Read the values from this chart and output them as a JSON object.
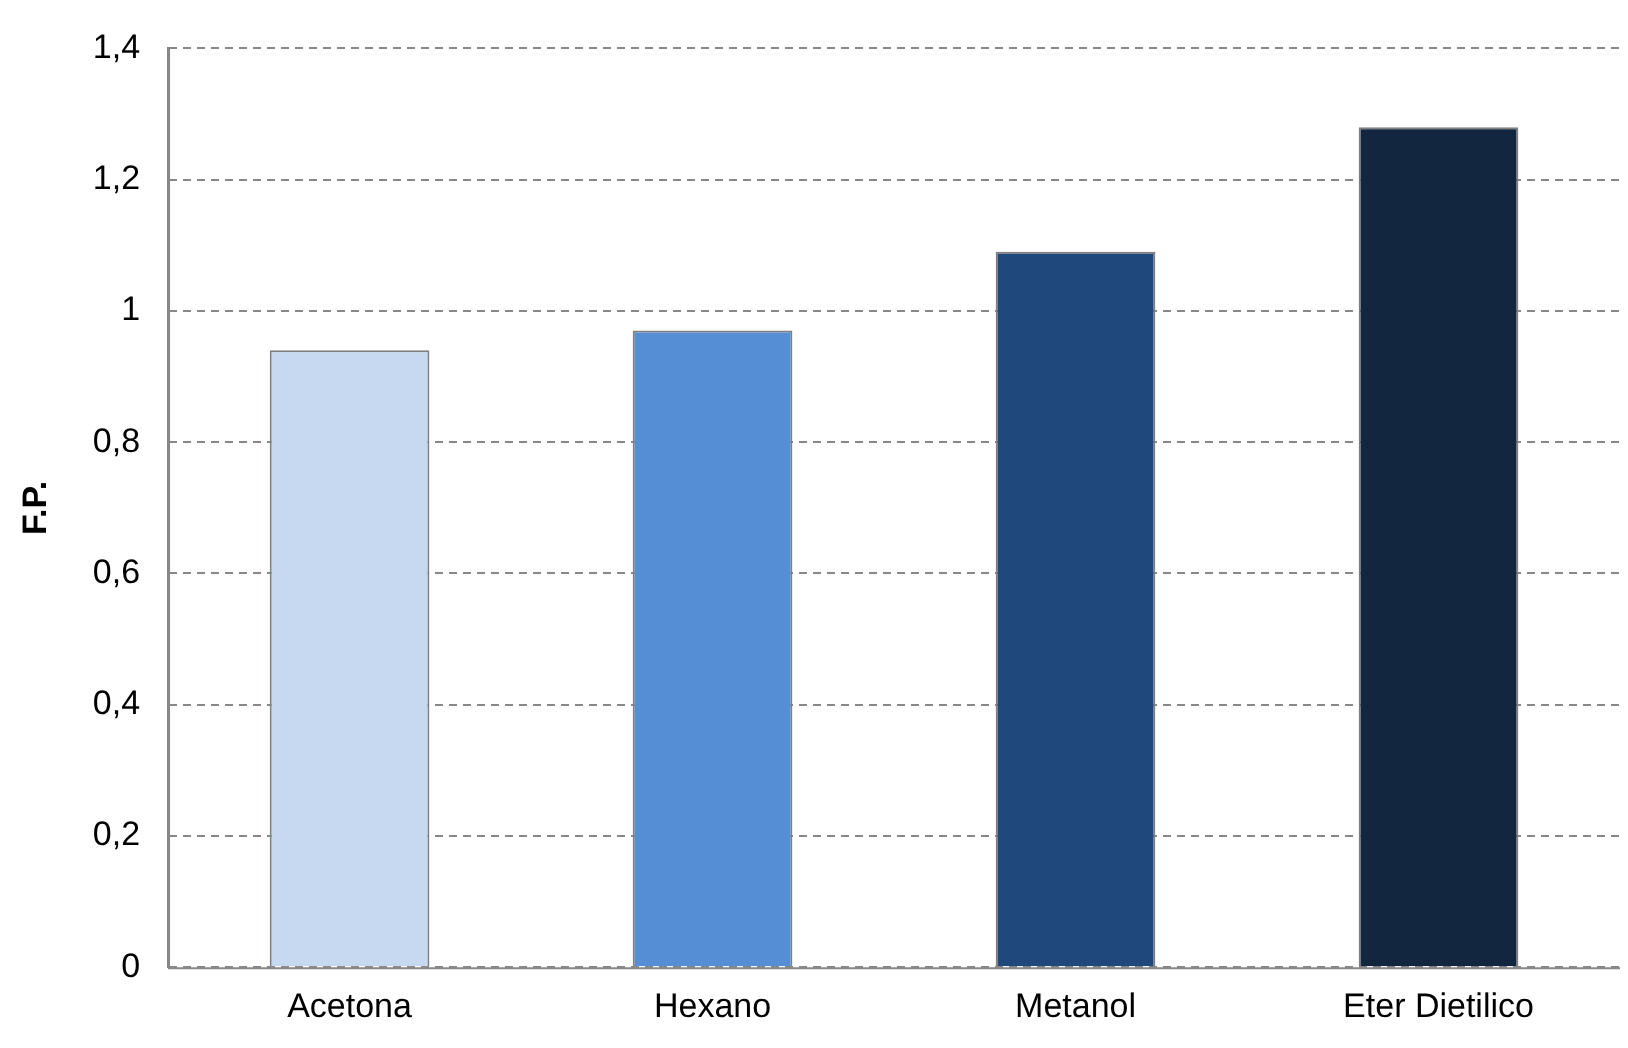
{
  "chart_data": {
    "type": "bar",
    "ylabel": "F.P.",
    "categories": [
      "Acetona",
      "Hexano",
      "Metanol",
      "Eter Dietilico"
    ],
    "values": [
      0.94,
      0.97,
      1.09,
      1.28
    ],
    "colors": [
      "#c6d9f0",
      "#558ed5",
      "#1f497d",
      "#12263f"
    ],
    "ylim": [
      0,
      1.4
    ],
    "yticks": [
      0,
      {
        "value": 0.2,
        "label": "0,2"
      },
      {
        "value": 0.4,
        "label": "0,4"
      },
      {
        "value": 0.6,
        "label": "0,6"
      },
      {
        "value": 0.8,
        "label": "0,8"
      },
      1,
      {
        "value": 1.2,
        "label": "1,2"
      },
      {
        "value": 1.4,
        "label": "1,4"
      }
    ],
    "grid": "y",
    "legend": false
  }
}
